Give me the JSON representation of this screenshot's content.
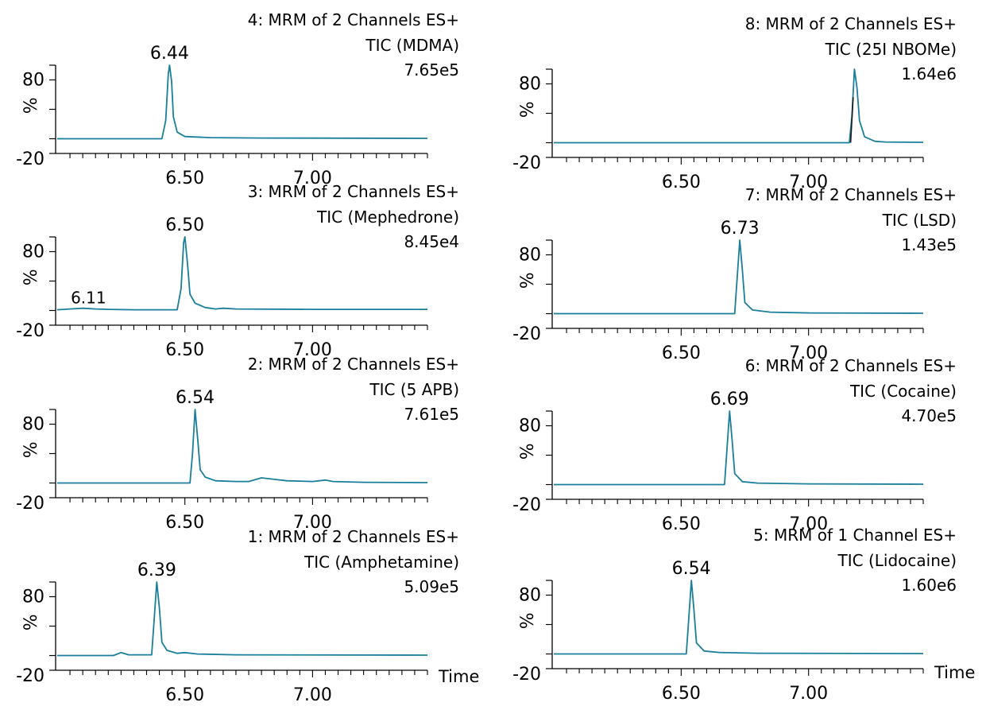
{
  "figure": {
    "x_axis_label": "Time",
    "trace_color": "#1a7f9a",
    "marker_color": "#1a1a1a"
  },
  "chart_data": [
    {
      "type": "line",
      "channel": "4: MRM of 2 Channels ES+",
      "compound": "TIC (MDMA)",
      "intensity": "7.65e5",
      "xlim": [
        6.0,
        7.45
      ],
      "ylim": [
        -20,
        100
      ],
      "x_ticks": [
        "6.50",
        "7.00"
      ],
      "y_ticks": [
        "80",
        "-20"
      ],
      "ylabel": "%",
      "peaks": [
        {
          "x": 6.44,
          "label": "6.44",
          "height": 100
        }
      ],
      "baseline_bumps": [],
      "series": [
        {
          "values": [
            [
              6.0,
              0
            ],
            [
              6.41,
              0
            ],
            [
              6.425,
              25
            ],
            [
              6.435,
              88
            ],
            [
              6.44,
              100
            ],
            [
              6.448,
              78
            ],
            [
              6.455,
              30
            ],
            [
              6.47,
              9
            ],
            [
              6.5,
              3
            ],
            [
              6.6,
              1.5
            ],
            [
              6.8,
              1
            ],
            [
              7.45,
              0.5
            ]
          ]
        }
      ]
    },
    {
      "type": "line",
      "channel": "3: MRM of 2 Channels ES+",
      "compound": "TIC (Mephedrone)",
      "intensity": "8.45e4",
      "xlim": [
        6.0,
        7.45
      ],
      "ylim": [
        -20,
        100
      ],
      "x_ticks": [
        "6.50",
        "7.00"
      ],
      "y_ticks": [
        "80",
        "-20"
      ],
      "ylabel": "%",
      "peaks": [
        {
          "x": 6.11,
          "label": "6.11",
          "height": 3
        },
        {
          "x": 6.5,
          "label": "6.50",
          "height": 100
        }
      ],
      "baseline_bumps": [],
      "series": [
        {
          "values": [
            [
              6.0,
              1
            ],
            [
              6.05,
              2
            ],
            [
              6.1,
              3
            ],
            [
              6.15,
              2
            ],
            [
              6.2,
              1.5
            ],
            [
              6.3,
              1
            ],
            [
              6.47,
              1
            ],
            [
              6.485,
              30
            ],
            [
              6.495,
              92
            ],
            [
              6.5,
              100
            ],
            [
              6.51,
              65
            ],
            [
              6.52,
              22
            ],
            [
              6.54,
              10
            ],
            [
              6.58,
              4
            ],
            [
              6.6,
              3
            ],
            [
              6.62,
              2
            ],
            [
              6.65,
              3
            ],
            [
              6.7,
              2
            ],
            [
              7.0,
              1.5
            ],
            [
              7.45,
              1.5
            ]
          ]
        }
      ]
    },
    {
      "type": "line",
      "channel": "2: MRM of 2 Channels ES+",
      "compound": "TIC (5 APB)",
      "intensity": "7.61e5",
      "xlim": [
        6.0,
        7.45
      ],
      "ylim": [
        -20,
        100
      ],
      "x_ticks": [
        "6.50",
        "7.00"
      ],
      "y_ticks": [
        "80",
        "-20"
      ],
      "ylabel": "%",
      "peaks": [
        {
          "x": 6.54,
          "label": "6.54",
          "height": 100
        }
      ],
      "baseline_bumps": [],
      "series": [
        {
          "values": [
            [
              6.0,
              0
            ],
            [
              6.52,
              0
            ],
            [
              6.53,
              40
            ],
            [
              6.54,
              100
            ],
            [
              6.55,
              60
            ],
            [
              6.56,
              18
            ],
            [
              6.58,
              8
            ],
            [
              6.62,
              3
            ],
            [
              6.7,
              2
            ],
            [
              6.75,
              2
            ],
            [
              6.8,
              7
            ],
            [
              6.85,
              5
            ],
            [
              6.9,
              3
            ],
            [
              7.0,
              2
            ],
            [
              7.05,
              4
            ],
            [
              7.08,
              2
            ],
            [
              7.2,
              1
            ],
            [
              7.45,
              0.5
            ]
          ]
        }
      ]
    },
    {
      "type": "line",
      "channel": "1: MRM of 2 Channels ES+",
      "compound": "TIC (Amphetamine)",
      "intensity": "5.09e5",
      "xlim": [
        6.0,
        7.45
      ],
      "ylim": [
        -20,
        100
      ],
      "x_ticks": [
        "6.50",
        "7.00"
      ],
      "y_ticks": [
        "80",
        "-20"
      ],
      "ylabel": "%",
      "peaks": [
        {
          "x": 6.39,
          "label": "6.39",
          "height": 100
        }
      ],
      "baseline_bumps": [],
      "series": [
        {
          "values": [
            [
              6.0,
              0
            ],
            [
              6.22,
              0
            ],
            [
              6.25,
              4
            ],
            [
              6.28,
              1
            ],
            [
              6.37,
              1
            ],
            [
              6.38,
              50
            ],
            [
              6.39,
              100
            ],
            [
              6.4,
              65
            ],
            [
              6.41,
              18
            ],
            [
              6.43,
              7
            ],
            [
              6.47,
              3
            ],
            [
              6.5,
              4
            ],
            [
              6.55,
              2
            ],
            [
              6.7,
              1
            ],
            [
              7.45,
              0.5
            ]
          ]
        }
      ]
    },
    {
      "type": "line",
      "channel": "8: MRM of 2 Channels ES+",
      "compound": "TIC (25I NBOMe)",
      "intensity": "1.64e6",
      "xlim": [
        6.0,
        7.45
      ],
      "ylim": [
        -20,
        100
      ],
      "x_ticks": [
        "6.50",
        "7.00"
      ],
      "y_ticks": [
        "80",
        "-20"
      ],
      "ylabel": "%",
      "peaks": [
        {
          "x": 7.18,
          "label": "",
          "height": 100
        }
      ],
      "baseline_bumps": [],
      "marker": {
        "x_from": 7.165,
        "x_to": 7.175,
        "y_from": 0,
        "y_to": 62
      },
      "series": [
        {
          "values": [
            [
              6.0,
              0
            ],
            [
              7.16,
              0
            ],
            [
              7.17,
              35
            ],
            [
              7.18,
              100
            ],
            [
              7.19,
              75
            ],
            [
              7.2,
              30
            ],
            [
              7.22,
              8
            ],
            [
              7.26,
              2
            ],
            [
              7.3,
              1
            ],
            [
              7.45,
              0.5
            ]
          ]
        }
      ]
    },
    {
      "type": "line",
      "channel": "7: MRM of 2 Channels ES+",
      "compound": "TIC (LSD)",
      "intensity": "1.43e5",
      "xlim": [
        6.0,
        7.45
      ],
      "ylim": [
        -20,
        100
      ],
      "x_ticks": [
        "6.50",
        "7.00"
      ],
      "y_ticks": [
        "80",
        "-20"
      ],
      "ylabel": "%",
      "peaks": [
        {
          "x": 6.73,
          "label": "6.73",
          "height": 100
        }
      ],
      "baseline_bumps": [],
      "series": [
        {
          "values": [
            [
              6.0,
              0
            ],
            [
              6.71,
              0
            ],
            [
              6.72,
              50
            ],
            [
              6.73,
              100
            ],
            [
              6.74,
              60
            ],
            [
              6.75,
              15
            ],
            [
              6.78,
              5
            ],
            [
              6.85,
              2
            ],
            [
              7.0,
              1
            ],
            [
              7.45,
              0.5
            ]
          ]
        }
      ]
    },
    {
      "type": "line",
      "channel": "6: MRM of 2 Channels ES+",
      "compound": "TIC (Cocaine)",
      "intensity": "4.70e5",
      "xlim": [
        6.0,
        7.45
      ],
      "ylim": [
        -20,
        100
      ],
      "x_ticks": [
        "6.50",
        "7.00"
      ],
      "y_ticks": [
        "80",
        "-20"
      ],
      "ylabel": "%",
      "peaks": [
        {
          "x": 6.69,
          "label": "6.69",
          "height": 100
        }
      ],
      "baseline_bumps": [],
      "series": [
        {
          "values": [
            [
              6.0,
              0
            ],
            [
              6.67,
              0
            ],
            [
              6.68,
              50
            ],
            [
              6.69,
              100
            ],
            [
              6.7,
              60
            ],
            [
              6.71,
              15
            ],
            [
              6.74,
              4
            ],
            [
              6.8,
              2
            ],
            [
              7.0,
              1
            ],
            [
              7.45,
              0.5
            ]
          ]
        }
      ]
    },
    {
      "type": "line",
      "channel": "5: MRM of 1 Channel ES+",
      "compound": "TIC (Lidocaine)",
      "intensity": "1.60e6",
      "xlim": [
        6.0,
        7.45
      ],
      "ylim": [
        -20,
        100
      ],
      "x_ticks": [
        "6.50",
        "7.00"
      ],
      "y_ticks": [
        "80",
        "-20"
      ],
      "ylabel": "%",
      "peaks": [
        {
          "x": 6.54,
          "label": "6.54",
          "height": 100
        }
      ],
      "baseline_bumps": [],
      "series": [
        {
          "values": [
            [
              6.0,
              0
            ],
            [
              6.52,
              0
            ],
            [
              6.53,
              50
            ],
            [
              6.54,
              100
            ],
            [
              6.55,
              60
            ],
            [
              6.56,
              15
            ],
            [
              6.59,
              4
            ],
            [
              6.65,
              2
            ],
            [
              6.8,
              1
            ],
            [
              7.45,
              0.5
            ]
          ]
        }
      ]
    }
  ]
}
